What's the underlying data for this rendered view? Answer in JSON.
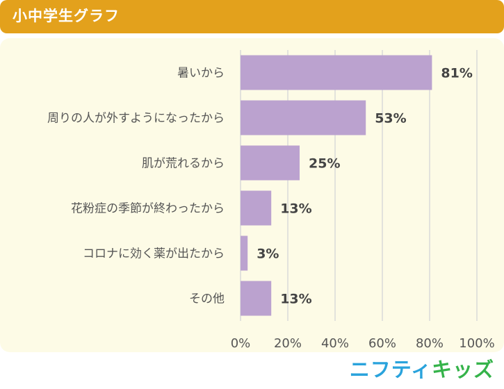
{
  "header": {
    "title": "小中学生グラフ"
  },
  "logo": {
    "part1": "ニフティ",
    "part2": "キッズ"
  },
  "colors": {
    "header_bg": "#e3a11c",
    "panel_bg": "#fdfbe6",
    "bar": "#bba2cf",
    "grid": "#d9d9d9"
  },
  "chart_data": {
    "type": "bar",
    "orientation": "horizontal",
    "categories": [
      "暑いから",
      "周りの人が外すようになったから",
      "肌が荒れるから",
      "花粉症の季節が終わったから",
      "コロナに効く薬が出たから",
      "その他"
    ],
    "values": [
      81,
      53,
      25,
      13,
      3,
      13
    ],
    "value_labels": [
      "81%",
      "53%",
      "25%",
      "13%",
      "3%",
      "13%"
    ],
    "xlim": [
      0,
      100
    ],
    "xticks": [
      0,
      20,
      40,
      60,
      80,
      100
    ],
    "xtick_labels": [
      "0%",
      "20%",
      "40%",
      "60%",
      "80%",
      "100%"
    ],
    "grid": true
  }
}
